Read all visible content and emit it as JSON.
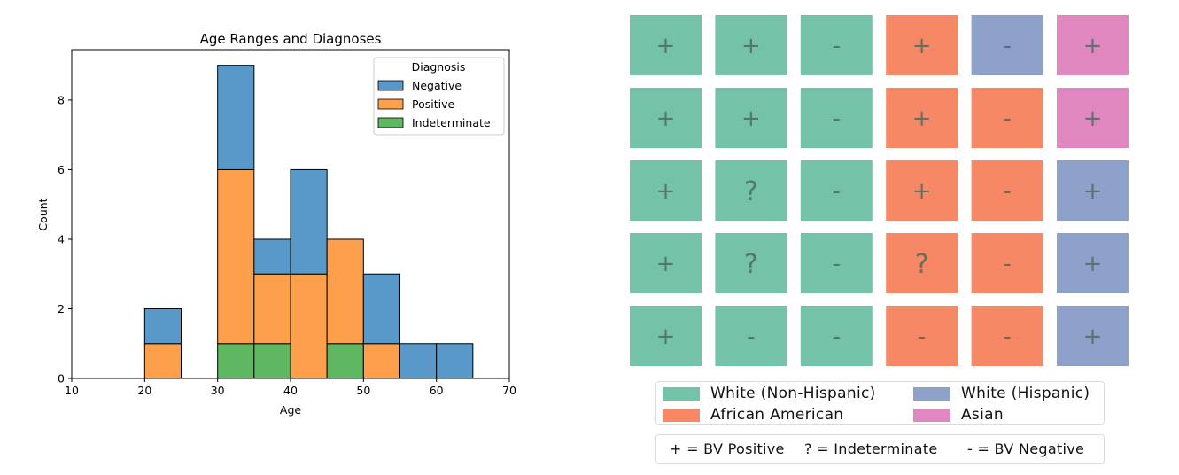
{
  "histogram": {
    "title": "Age Ranges and Diagnoses",
    "xlabel": "Age",
    "ylabel": "Count",
    "legend_title": "Diagnosis",
    "legend_position": "top-right",
    "legend": [
      "Negative",
      "Positive",
      "Indeterminate"
    ],
    "x_ticks": [
      "10",
      "20",
      "30",
      "40",
      "50",
      "60",
      "70"
    ],
    "y_ticks": [
      "0",
      "2",
      "4",
      "6",
      "8"
    ]
  },
  "waffle": {
    "legend_races": [
      "White (Non-Hispanic)",
      "African American",
      "White (Hispanic)",
      "Asian"
    ],
    "legend_symbols": [
      "+ = BV Positive",
      "? = Indeterminate",
      "- = BV Negative"
    ]
  },
  "colors": {
    "negative": "#5899c9",
    "positive": "#fd9f4b",
    "indeterminate": "#5fb762",
    "white_non_hispanic": "#74c2a7",
    "african_american": "#f68866",
    "white_hispanic": "#8ea1ca",
    "asian": "#e087bf",
    "symbol": "#4e6a60"
  },
  "chart_data": [
    {
      "type": "bar",
      "stacked": true,
      "title": "Age Ranges and Diagnoses",
      "xlabel": "Age",
      "ylabel": "Count",
      "xlim": [
        10,
        70
      ],
      "ylim": [
        0,
        9.45
      ],
      "bin_width": 5,
      "bins": [
        20,
        30,
        35,
        40,
        45,
        50,
        55,
        60
      ],
      "series": [
        {
          "name": "Indeterminate",
          "values": [
            0,
            1,
            1,
            0,
            1,
            0,
            0,
            0
          ]
        },
        {
          "name": "Positive",
          "values": [
            1,
            5,
            2,
            3,
            3,
            1,
            0,
            0
          ]
        },
        {
          "name": "Negative",
          "values": [
            1,
            3,
            1,
            3,
            0,
            2,
            1,
            1
          ]
        }
      ],
      "grid": false
    },
    {
      "type": "waffle",
      "rows": 5,
      "columns": 6,
      "cells": [
        [
          {
            "group": "White (Non-Hispanic)",
            "symbol": "+"
          },
          {
            "group": "White (Non-Hispanic)",
            "symbol": "+"
          },
          {
            "group": "White (Non-Hispanic)",
            "symbol": "-"
          },
          {
            "group": "African American",
            "symbol": "+"
          },
          {
            "group": "White (Hispanic)",
            "symbol": "-"
          },
          {
            "group": "Asian",
            "symbol": "+"
          }
        ],
        [
          {
            "group": "White (Non-Hispanic)",
            "symbol": "+"
          },
          {
            "group": "White (Non-Hispanic)",
            "symbol": "+"
          },
          {
            "group": "White (Non-Hispanic)",
            "symbol": "-"
          },
          {
            "group": "African American",
            "symbol": "+"
          },
          {
            "group": "African American",
            "symbol": "-"
          },
          {
            "group": "Asian",
            "symbol": "+"
          }
        ],
        [
          {
            "group": "White (Non-Hispanic)",
            "symbol": "+"
          },
          {
            "group": "White (Non-Hispanic)",
            "symbol": "?"
          },
          {
            "group": "White (Non-Hispanic)",
            "symbol": "-"
          },
          {
            "group": "African American",
            "symbol": "+"
          },
          {
            "group": "African American",
            "symbol": "-"
          },
          {
            "group": "White (Hispanic)",
            "symbol": "+"
          }
        ],
        [
          {
            "group": "White (Non-Hispanic)",
            "symbol": "+"
          },
          {
            "group": "White (Non-Hispanic)",
            "symbol": "?"
          },
          {
            "group": "White (Non-Hispanic)",
            "symbol": "-"
          },
          {
            "group": "African American",
            "symbol": "?"
          },
          {
            "group": "African American",
            "symbol": "-"
          },
          {
            "group": "White (Hispanic)",
            "symbol": "+"
          }
        ],
        [
          {
            "group": "White (Non-Hispanic)",
            "symbol": "+"
          },
          {
            "group": "White (Non-Hispanic)",
            "symbol": "-"
          },
          {
            "group": "White (Non-Hispanic)",
            "symbol": "-"
          },
          {
            "group": "African American",
            "symbol": "-"
          },
          {
            "group": "African American",
            "symbol": "-"
          },
          {
            "group": "White (Hispanic)",
            "symbol": "+"
          }
        ]
      ]
    }
  ]
}
